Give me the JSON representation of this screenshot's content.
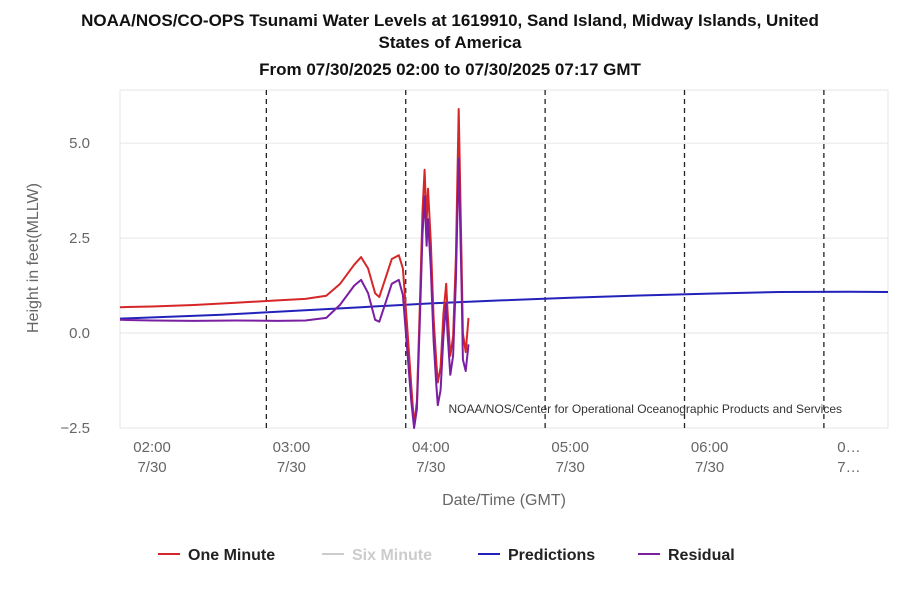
{
  "chart_data": {
    "type": "line",
    "title_line1": "NOAA/NOS/CO-OPS Tsunami Water Levels at 1619910, Sand Island, Midway Islands, United",
    "title_line2": "States of America",
    "subtitle": "From 07/30/2025 02:00 to 07/30/2025 07:17 GMT",
    "xlabel": "Date/Time (GMT)",
    "ylabel": "Height in feet(MLLW)",
    "credit": "NOAA/NOS/Center for Operational Oceanographic Products and Services",
    "y_ticks": [
      "5.0",
      "2.5",
      "0.0",
      "−2.5"
    ],
    "y_tick_values": [
      5.0,
      2.5,
      0.0,
      -2.5
    ],
    "ylim": [
      -2.5,
      6.4
    ],
    "xlim_hours": [
      1.77,
      7.28
    ],
    "grid": "horizontal gridlines; dashed vertical lines at each hour",
    "x_ticks": [
      {
        "time": "02:00",
        "date": "7/30",
        "hour": 2.0
      },
      {
        "time": "03:00",
        "date": "7/30",
        "hour": 3.0
      },
      {
        "time": "04:00",
        "date": "7/30",
        "hour": 4.0
      },
      {
        "time": "05:00",
        "date": "7/30",
        "hour": 5.0
      },
      {
        "time": "06:00",
        "date": "7/30",
        "hour": 6.0
      },
      {
        "time": "0…",
        "date": "7…",
        "hour": 7.0
      }
    ],
    "dashed_hours": [
      2.82,
      3.82,
      4.82,
      5.82,
      6.82
    ],
    "legend_position": "bottom",
    "series": [
      {
        "name": "One Minute",
        "color": "#d62728",
        "points": [
          [
            1.77,
            0.68
          ],
          [
            2.0,
            0.7
          ],
          [
            2.3,
            0.74
          ],
          [
            2.6,
            0.8
          ],
          [
            2.9,
            0.86
          ],
          [
            3.1,
            0.9
          ],
          [
            3.25,
            0.98
          ],
          [
            3.35,
            1.3
          ],
          [
            3.45,
            1.8
          ],
          [
            3.5,
            2.0
          ],
          [
            3.55,
            1.7
          ],
          [
            3.6,
            1.05
          ],
          [
            3.63,
            0.95
          ],
          [
            3.68,
            1.5
          ],
          [
            3.72,
            1.95
          ],
          [
            3.77,
            2.05
          ],
          [
            3.8,
            1.7
          ],
          [
            3.83,
            0.2
          ],
          [
            3.86,
            -1.4
          ],
          [
            3.88,
            -2.4
          ],
          [
            3.9,
            -1.8
          ],
          [
            3.92,
            0.6
          ],
          [
            3.94,
            3.2
          ],
          [
            3.955,
            4.3
          ],
          [
            3.97,
            2.9
          ],
          [
            3.98,
            3.8
          ],
          [
            4.0,
            2.4
          ],
          [
            4.02,
            0.4
          ],
          [
            4.04,
            -0.8
          ],
          [
            4.05,
            -1.3
          ],
          [
            4.07,
            -0.9
          ],
          [
            4.09,
            0.5
          ],
          [
            4.11,
            1.3
          ],
          [
            4.12,
            0.6
          ],
          [
            4.14,
            -0.6
          ],
          [
            4.16,
            -0.1
          ],
          [
            4.18,
            2.0
          ],
          [
            4.2,
            5.9
          ],
          [
            4.22,
            2.0
          ],
          [
            4.23,
            0.0
          ],
          [
            4.25,
            -0.5
          ],
          [
            4.27,
            0.4
          ]
        ]
      },
      {
        "name": "Six Minute",
        "color": "#cccccc",
        "points": []
      },
      {
        "name": "Predictions",
        "color": "#2222bb",
        "points": [
          [
            1.77,
            0.38
          ],
          [
            2.5,
            0.48
          ],
          [
            3.0,
            0.58
          ],
          [
            3.5,
            0.68
          ],
          [
            4.0,
            0.78
          ],
          [
            4.5,
            0.86
          ],
          [
            5.0,
            0.93
          ],
          [
            5.5,
            0.99
          ],
          [
            6.0,
            1.04
          ],
          [
            6.5,
            1.08
          ],
          [
            7.0,
            1.09
          ],
          [
            7.28,
            1.08
          ]
        ]
      },
      {
        "name": "Residual",
        "color": "#7a1fa2",
        "points": [
          [
            1.77,
            0.35
          ],
          [
            2.0,
            0.33
          ],
          [
            2.3,
            0.32
          ],
          [
            2.6,
            0.33
          ],
          [
            2.9,
            0.32
          ],
          [
            3.1,
            0.33
          ],
          [
            3.25,
            0.4
          ],
          [
            3.35,
            0.75
          ],
          [
            3.45,
            1.25
          ],
          [
            3.5,
            1.4
          ],
          [
            3.55,
            1.05
          ],
          [
            3.6,
            0.35
          ],
          [
            3.63,
            0.3
          ],
          [
            3.68,
            0.85
          ],
          [
            3.72,
            1.3
          ],
          [
            3.77,
            1.4
          ],
          [
            3.8,
            1.0
          ],
          [
            3.83,
            -0.4
          ],
          [
            3.86,
            -1.8
          ],
          [
            3.88,
            -2.5
          ],
          [
            3.9,
            -2.0
          ],
          [
            3.92,
            0.2
          ],
          [
            3.94,
            2.6
          ],
          [
            3.955,
            3.6
          ],
          [
            3.97,
            2.3
          ],
          [
            3.98,
            3.0
          ],
          [
            4.0,
            1.7
          ],
          [
            4.02,
            -0.2
          ],
          [
            4.04,
            -1.4
          ],
          [
            4.05,
            -1.9
          ],
          [
            4.07,
            -1.5
          ],
          [
            4.09,
            -0.1
          ],
          [
            4.11,
            0.8
          ],
          [
            4.12,
            0.0
          ],
          [
            4.14,
            -1.1
          ],
          [
            4.16,
            -0.6
          ],
          [
            4.18,
            1.4
          ],
          [
            4.2,
            4.6
          ],
          [
            4.22,
            1.3
          ],
          [
            4.23,
            -0.7
          ],
          [
            4.25,
            -1.0
          ],
          [
            4.27,
            -0.3
          ]
        ]
      }
    ]
  }
}
